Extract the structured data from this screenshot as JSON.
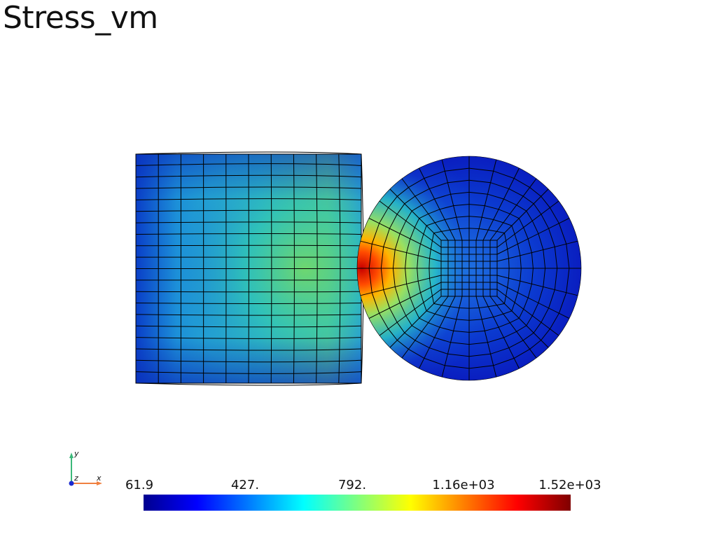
{
  "title": "Stress_vm",
  "colorbar": {
    "labels": [
      "61.9",
      "427.",
      "792.",
      "1.16e+03",
      "1.52e+03"
    ],
    "colors": [
      "#00008f",
      "#0000ff",
      "#007fff",
      "#00ffff",
      "#7fff7f",
      "#ffff00",
      "#ff7f00",
      "#ff0000",
      "#7f0000"
    ]
  },
  "axes": {
    "x": "x",
    "y": "y",
    "z": "z"
  },
  "colors": {
    "mesh_line": "#000000",
    "low": "#0a1aa8",
    "mid": "#2ab8d8",
    "high": "#7fdc55",
    "peak": "#d01010"
  }
}
